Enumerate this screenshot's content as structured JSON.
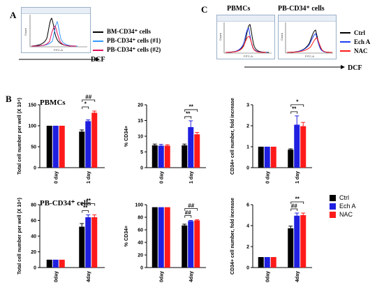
{
  "panel_a": {
    "letter": "A",
    "legend": [
      {
        "label": "BM-CD34⁺ cells",
        "color": "#000000"
      },
      {
        "label": "PB-CD34⁺ cells (#1)",
        "color": "#3399ff"
      },
      {
        "label": "PB-CD34⁺ cells (#2)",
        "color": "#e0115f"
      }
    ],
    "axis_label": "DCF",
    "flow_xlabel": "FITC-A",
    "flow_ylabel": "Count"
  },
  "panel_c": {
    "letter": "C",
    "titles": [
      "PBMCs",
      "PB-CD34⁺ cells"
    ],
    "legend": [
      {
        "label": "Ctrl",
        "color": "#000000"
      },
      {
        "label": "Ech A",
        "color": "#1f3ff0"
      },
      {
        "label": "NAC",
        "color": "#ff1a1a"
      }
    ],
    "axis_label": "DCF",
    "flow_xlabel": "FITC-A",
    "flow_ylabel": "Count"
  },
  "panel_b": {
    "letter": "B",
    "row_titles": [
      "PBMCs",
      "PB-CD34⁺ cells"
    ],
    "legend": [
      {
        "label": "Ctrl",
        "color": "#000000"
      },
      {
        "label": "Ech A",
        "color": "#1f1fe0"
      },
      {
        "label": "NAC",
        "color": "#ff1a1a"
      }
    ]
  },
  "chart_data": [
    {
      "type": "bar",
      "id": "pbmc-count",
      "categories": [
        "0 day",
        "1 day"
      ],
      "series": [
        {
          "name": "Ctrl",
          "values": [
            100,
            86
          ]
        },
        {
          "name": "Ech A",
          "values": [
            100,
            111
          ]
        },
        {
          "name": "NAC",
          "values": [
            100,
            131
          ]
        }
      ],
      "errors": [
        [
          0,
          4
        ],
        [
          0,
          3
        ],
        [
          0,
          4
        ]
      ],
      "ylabel": "Total cell number per well (X 10⁴)",
      "ylim": [
        0,
        150
      ],
      "yticks": [
        0,
        50,
        100,
        150
      ],
      "annotations": [
        "*",
        "##"
      ]
    },
    {
      "type": "bar",
      "id": "pbmc-pct",
      "categories": [
        "0 day",
        "1 day"
      ],
      "series": [
        {
          "name": "Ctrl",
          "values": [
            7.1,
            7.1
          ]
        },
        {
          "name": "Ech A",
          "values": [
            7.0,
            12.9
          ]
        },
        {
          "name": "NAC",
          "values": [
            7.0,
            10.6
          ]
        }
      ],
      "errors": [
        [
          0.4,
          0.4
        ],
        [
          0.4,
          2.0
        ],
        [
          0.3,
          0.6
        ]
      ],
      "ylabel": "% CD34+",
      "ylim": [
        0,
        20
      ],
      "yticks": [
        0,
        5,
        10,
        15,
        20
      ],
      "annotations": [
        "**",
        "**"
      ]
    },
    {
      "type": "bar",
      "id": "pbmc-fold",
      "categories": [
        "0 day",
        "1 day"
      ],
      "series": [
        {
          "name": "Ctrl",
          "values": [
            1.0,
            0.86
          ]
        },
        {
          "name": "Ech A",
          "values": [
            1.0,
            2.05
          ]
        },
        {
          "name": "NAC",
          "values": [
            1.0,
            1.98
          ]
        }
      ],
      "errors": [
        [
          0,
          0.04
        ],
        [
          0,
          0.42
        ],
        [
          0,
          0.18
        ]
      ],
      "ylabel": "CD34+ cell number, fold increase",
      "ylim": [
        0,
        3
      ],
      "yticks": [
        0,
        1,
        2,
        3
      ],
      "annotations": [
        "**",
        "*"
      ]
    },
    {
      "type": "bar",
      "id": "cd34-count",
      "categories": [
        "0day",
        "4day"
      ],
      "series": [
        {
          "name": "Ctrl",
          "values": [
            10,
            52
          ]
        },
        {
          "name": "Ech A",
          "values": [
            10,
            64
          ]
        },
        {
          "name": "NAC",
          "values": [
            10,
            64
          ]
        }
      ],
      "errors": [
        [
          0,
          4
        ],
        [
          0,
          3
        ],
        [
          0,
          3
        ]
      ],
      "ylabel": "Total cell number per well (X 10⁴)",
      "ylim": [
        0,
        80
      ],
      "yticks": [
        0,
        20,
        40,
        60,
        80
      ],
      "annotations": [
        "**",
        "**"
      ]
    },
    {
      "type": "bar",
      "id": "cd34-pct",
      "categories": [
        "0day",
        "4day"
      ],
      "series": [
        {
          "name": "Ctrl",
          "values": [
            96,
            67
          ]
        },
        {
          "name": "Ech A",
          "values": [
            96,
            74
          ]
        },
        {
          "name": "NAC",
          "values": [
            96,
            75
          ]
        }
      ],
      "errors": [
        [
          0,
          2
        ],
        [
          0,
          1
        ],
        [
          0,
          1
        ]
      ],
      "ylabel": "% CD34+",
      "ylim": [
        0,
        100
      ],
      "yticks": [
        0,
        20,
        40,
        60,
        80,
        100
      ],
      "annotations": [
        "##",
        "##"
      ]
    },
    {
      "type": "bar",
      "id": "cd34-fold",
      "categories": [
        "0day",
        "4day"
      ],
      "series": [
        {
          "name": "Ctrl",
          "values": [
            1.0,
            3.75
          ]
        },
        {
          "name": "Ech A",
          "values": [
            1.0,
            4.95
          ]
        },
        {
          "name": "NAC",
          "values": [
            1.0,
            5.0
          ]
        }
      ],
      "errors": [
        [
          0,
          0.2
        ],
        [
          0,
          0.25
        ],
        [
          0,
          0.2
        ]
      ],
      "ylabel": "CD34+ cell number, fold increase",
      "ylim": [
        0,
        6
      ],
      "yticks": [
        0,
        2,
        4,
        6
      ],
      "annotations": [
        "##",
        "**"
      ]
    }
  ]
}
